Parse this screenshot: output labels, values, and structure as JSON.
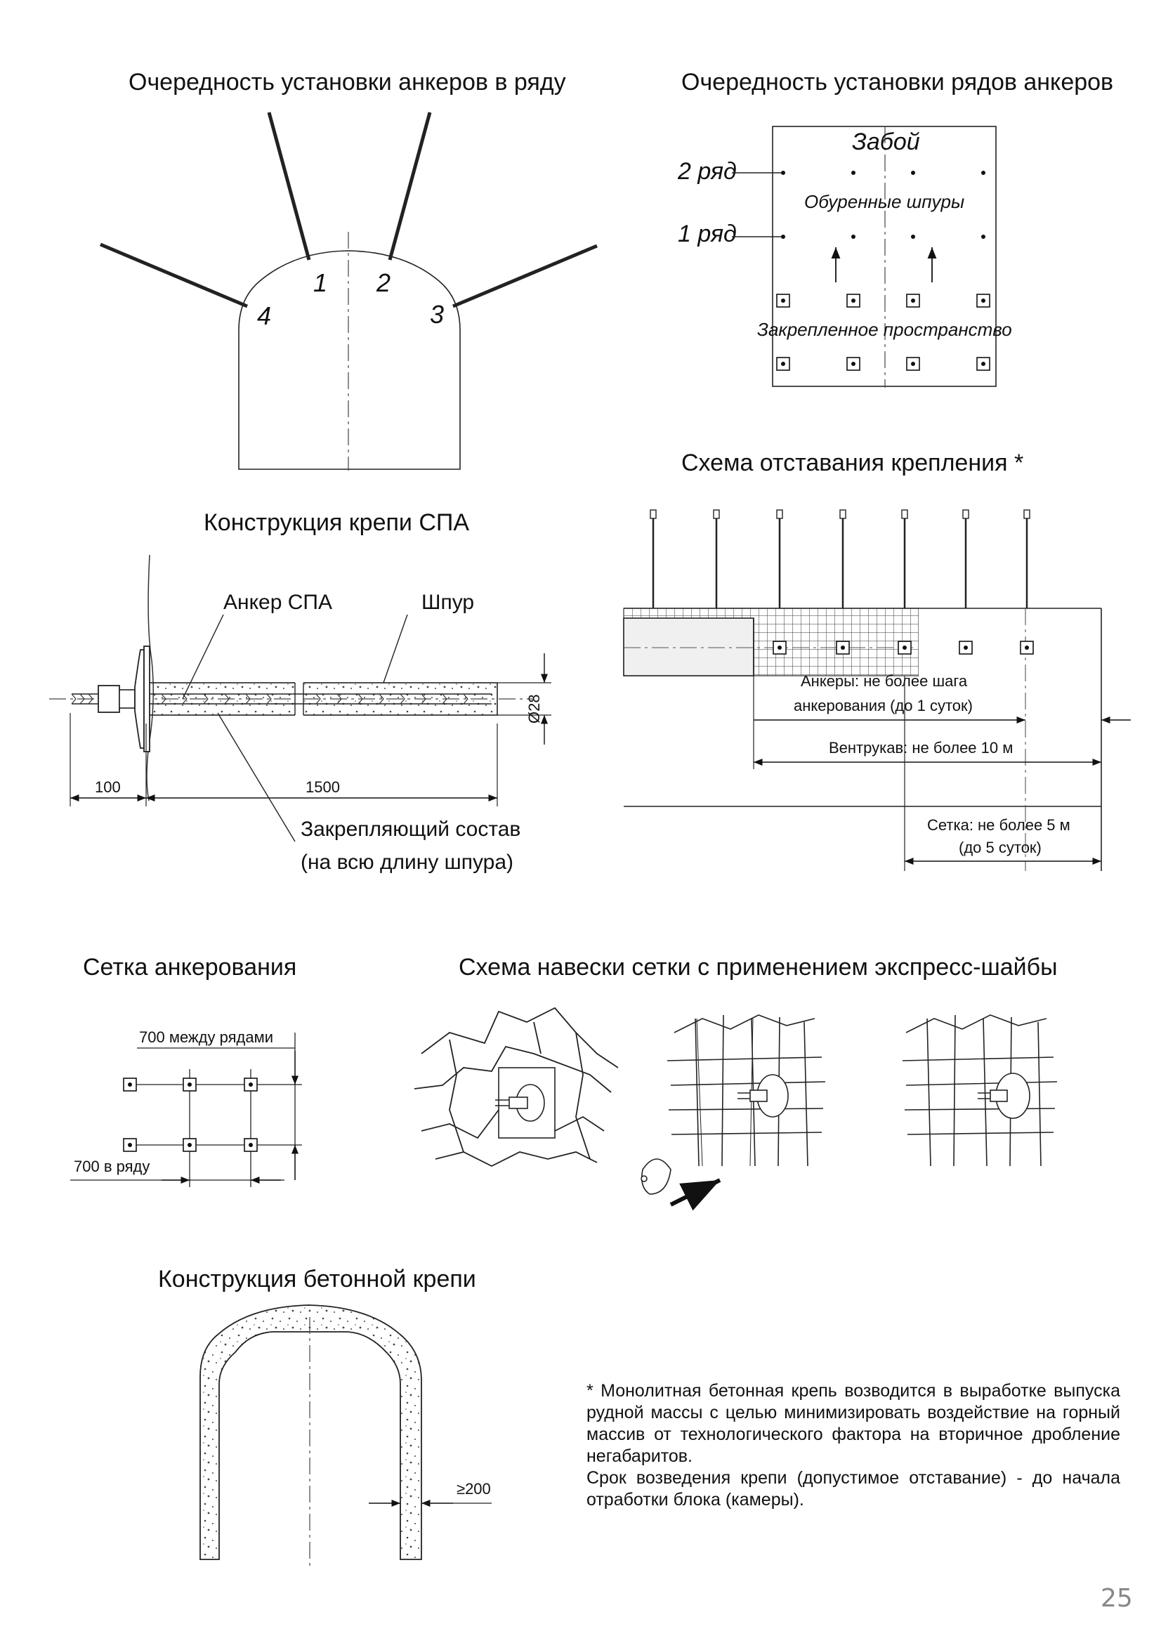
{
  "sections": {
    "anchor_order_in_row": {
      "title": "Очередность установки анкеров в ряду",
      "labels": [
        "1",
        "2",
        "3",
        "4"
      ]
    },
    "row_order": {
      "title": "Очередность установки рядов анкеров",
      "face": "Забой",
      "row2": "2 ряд",
      "row1": "1 ряд",
      "drilled": "Обуренные шпуры",
      "secured": "Закрепленное пространство"
    },
    "spa_construction": {
      "title": "Конструкция крепи СПА",
      "anchor_label": "Анкер СПА",
      "hole_label": "Шпур",
      "diameter": "Ø28",
      "dim_left": "100",
      "dim_main": "1500",
      "fixing_line1": "Закрепляющий состав",
      "fixing_line2": "(на всю длину шпура)"
    },
    "lag_scheme": {
      "title": "Схема отставания крепления *",
      "anchors_line1": "Анкеры: не более шага",
      "anchors_line2": "анкерования (до 1 суток)",
      "vent": "Вентрукав: не более 10 м",
      "mesh_line1": "Сетка: не более 5 м",
      "mesh_line2": "(до 5 суток)"
    },
    "anchor_grid": {
      "title": "Сетка анкерования",
      "between_rows": "700 между рядами",
      "in_row": "700 в ряду"
    },
    "mesh_hanging": {
      "title": "Схема навески сетки с применением экспресс-шайбы"
    },
    "concrete": {
      "title": "Конструкция бетонной крепи",
      "thickness": "≥200"
    }
  },
  "note": {
    "paragraph1": "* Монолитная бетонная крепь возводится в выработке выпуска рудной массы с целью минимизировать воздействие на горный массив от технологического фактора на вторичное дробление негабаритов.",
    "paragraph2": "Срок возведения крепи (допустимое отставание) - до начала отработки блока (камеры)."
  },
  "page_number": "25"
}
